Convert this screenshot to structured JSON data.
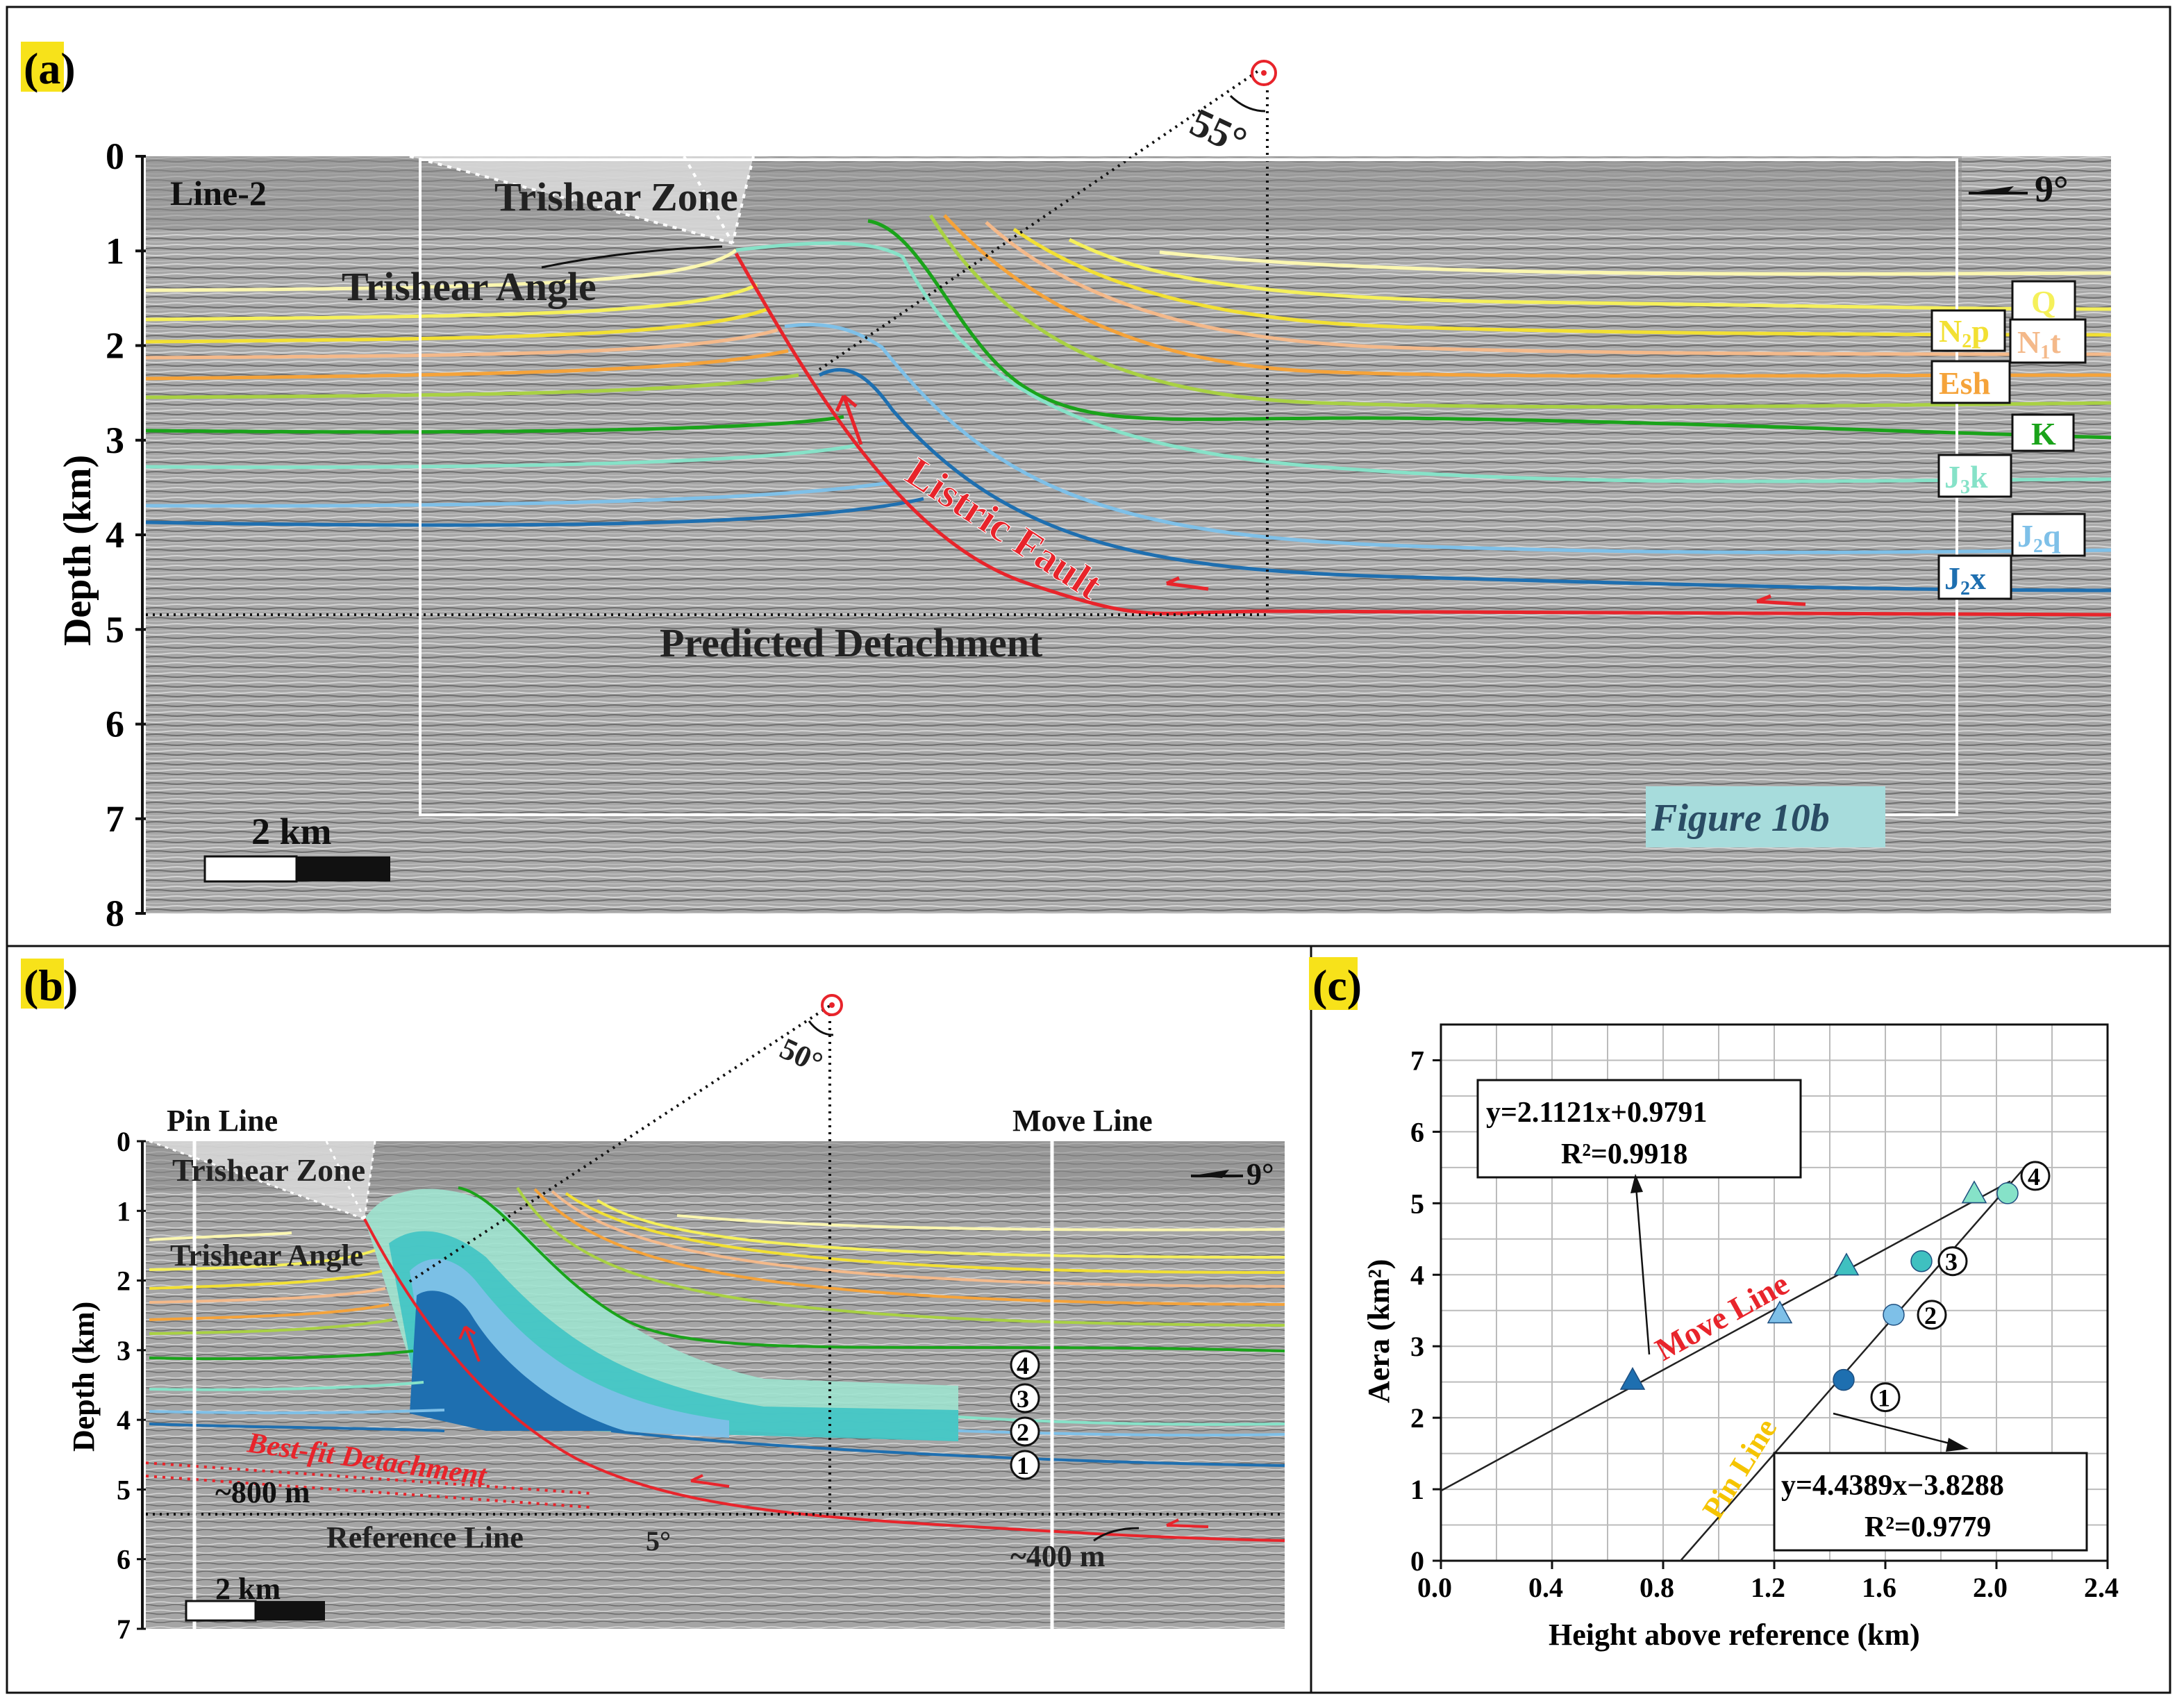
{
  "panels": {
    "a": {
      "label": "(a)",
      "line_name": "Line-2",
      "dip_label": "9°",
      "trishear_zone": "Trishear Zone",
      "trishear_angle": "Trishear Angle",
      "angle": "55°",
      "fault_label": "Listric Fault",
      "detachment_label": "Predicted Detachment",
      "scale_label": "2 km",
      "figure_ref": "Figure 10b",
      "ylabel": "Depth (km)",
      "yticks": [
        "0",
        "1",
        "2",
        "3",
        "4",
        "5",
        "6",
        "7",
        "8"
      ],
      "formations": [
        {
          "main": "Q",
          "sub": "",
          "rest": "",
          "color": "#f5f05a"
        },
        {
          "main": "N",
          "sub": "2",
          "rest": "p",
          "color": "#f2e033"
        },
        {
          "main": "N",
          "sub": "1",
          "rest": "t",
          "color": "#f4b98a"
        },
        {
          "main": "Esh",
          "sub": "",
          "rest": "",
          "color": "#f5a33a"
        },
        {
          "main": "K",
          "sub": "",
          "rest": "",
          "color": "#1aa31a"
        },
        {
          "main": "J",
          "sub": "3",
          "rest": "k",
          "color": "#86e2c8"
        },
        {
          "main": "J",
          "sub": "2",
          "rest": "q",
          "color": "#7ec0e8"
        },
        {
          "main": "J",
          "sub": "2",
          "rest": "x",
          "color": "#1e6fb0"
        }
      ]
    },
    "b": {
      "label": "(b)",
      "pin_line": "Pin Line",
      "move_line": "Move Line",
      "dip_label": "9°",
      "trishear_zone": "Trishear Zone",
      "trishear_angle": "Trishear Angle",
      "angle": "50°",
      "detachment_label": "Best-fit Detachment",
      "offset_left": "~800 m",
      "offset_right": "~400 m",
      "reference_line": "Reference Line",
      "ref_angle": "5°",
      "scale_label": "2 km",
      "ylabel": "Depth (km)",
      "yticks": [
        "0",
        "1",
        "2",
        "3",
        "4",
        "5",
        "6",
        "7"
      ],
      "markers": [
        "4",
        "3",
        "2",
        "1"
      ]
    },
    "c": {
      "label": "(c)",
      "chart_data": {
        "type": "scatter",
        "xlabel": "Height above reference (km)",
        "ylabel": "Aera (km²)",
        "xlim": [
          0.0,
          2.4
        ],
        "ylim": [
          0,
          7.5
        ],
        "xticks": [
          "0.0",
          "0.4",
          "0.8",
          "1.2",
          "1.6",
          "2.0",
          "2.4"
        ],
        "yticks": [
          "0",
          "1",
          "2",
          "3",
          "4",
          "5",
          "6",
          "7"
        ],
        "grid": true,
        "series": [
          {
            "name": "Move Line",
            "marker": "triangle",
            "points": [
              [
                0.69,
                2.53
              ],
              [
                1.22,
                3.46
              ],
              [
                1.46,
                4.13
              ],
              [
                1.92,
                5.14
              ]
            ],
            "colors": [
              "#1e6fb0",
              "#7ec0e8",
              "#3fc0c0",
              "#86e2c8"
            ],
            "fit": {
              "slope": 2.1121,
              "intercept": 0.9791
            },
            "equation": "y=2.1121x+0.9791",
            "r2": "R²=0.9918",
            "label": "Move Line",
            "label_color": "#e8242b"
          },
          {
            "name": "Pin Line",
            "marker": "circle",
            "points": [
              [
                1.45,
                2.53
              ],
              [
                1.63,
                3.44
              ],
              [
                1.73,
                4.19
              ],
              [
                2.04,
                5.14
              ]
            ],
            "colors": [
              "#1e6fb0",
              "#7ec0e8",
              "#3fc0c0",
              "#86e2c8"
            ],
            "fit": {
              "slope": 4.4389,
              "intercept": -3.8288
            },
            "equation": "y=4.4389x−3.8288",
            "r2": "R²=0.9779",
            "label": "Pin Line",
            "label_color": "#f5c400"
          }
        ],
        "point_labels": [
          "1",
          "2",
          "3",
          "4"
        ]
      }
    }
  }
}
